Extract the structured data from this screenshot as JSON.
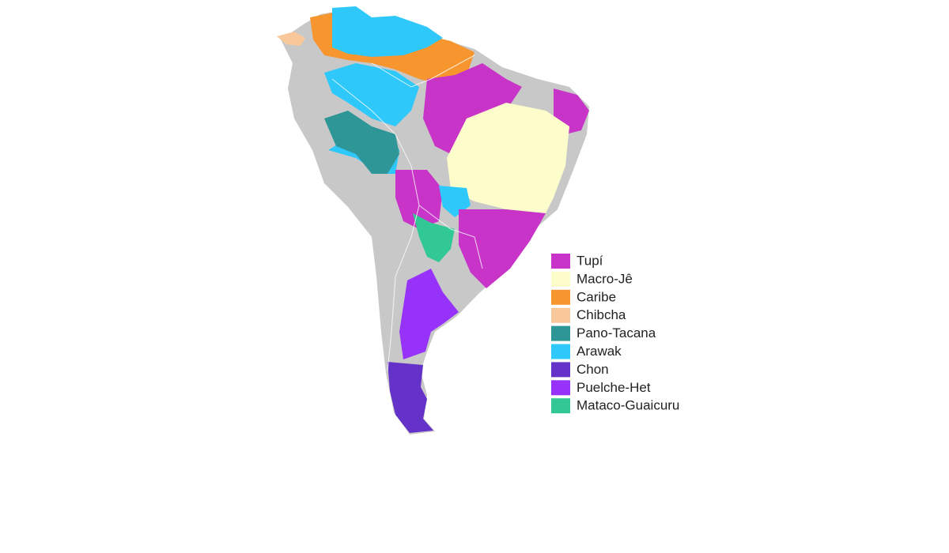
{
  "legend": {
    "items": [
      {
        "label": "Tupí",
        "color": "#c834c8"
      },
      {
        "label": "Macro-Jê",
        "color": "#fdfdcc"
      },
      {
        "label": "Caribe",
        "color": "#f7962f"
      },
      {
        "label": "Chibcha",
        "color": "#f9c89a"
      },
      {
        "label": "Pano-Tacana",
        "color": "#2e9696"
      },
      {
        "label": "Arawak",
        "color": "#2ec8fa"
      },
      {
        "label": "Chon",
        "color": "#6432c8"
      },
      {
        "label": "Puelche-Het",
        "color": "#9632fa"
      },
      {
        "label": "Mataco-Guaicuru",
        "color": "#32c896"
      }
    ]
  }
}
